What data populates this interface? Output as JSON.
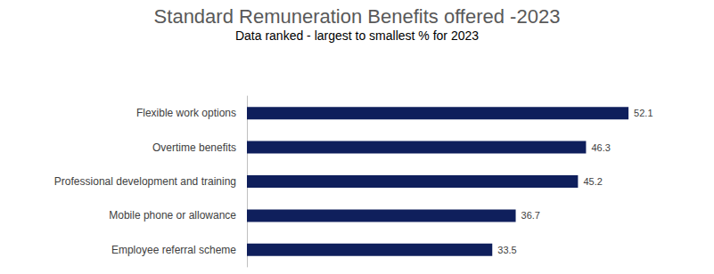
{
  "chart_data": {
    "type": "bar",
    "title": "Standard Remuneration Benefits offered -2023",
    "subtitle": "Data ranked - largest to smallest % for 2023",
    "categories": [
      "Flexible work options",
      "Overtime benefits",
      "Professional development and training",
      "Mobile phone or allowance",
      "Employee referral scheme"
    ],
    "values": [
      52.1,
      46.3,
      45.2,
      36.7,
      33.5
    ],
    "color": "#0f1f5c",
    "orientation": "horizontal",
    "xlim": [
      0,
      60
    ],
    "grid": false,
    "data_labels": true,
    "tick_labels": "y"
  }
}
